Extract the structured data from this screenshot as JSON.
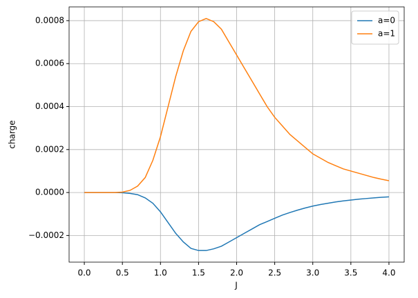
{
  "chart_data": {
    "type": "line",
    "xlabel": "J",
    "ylabel": "charge",
    "x": [
      0.0,
      0.1,
      0.2,
      0.3,
      0.4,
      0.5,
      0.6,
      0.7,
      0.8,
      0.9,
      1.0,
      1.1,
      1.2,
      1.3,
      1.4,
      1.5,
      1.6,
      1.7,
      1.8,
      1.9,
      2.0,
      2.1,
      2.2,
      2.3,
      2.4,
      2.5,
      2.6,
      2.7,
      2.8,
      2.9,
      3.0,
      3.1,
      3.2,
      3.3,
      3.4,
      3.5,
      3.6,
      3.7,
      3.8,
      3.9,
      4.0
    ],
    "series": [
      {
        "name": "a=0",
        "color": "#1f77b4",
        "values": [
          0,
          0,
          0,
          0,
          0,
          -1e-06,
          -4e-06,
          -1e-05,
          -2.5e-05,
          -5e-05,
          -9e-05,
          -0.00014,
          -0.00019,
          -0.00023,
          -0.00026,
          -0.00027,
          -0.00027,
          -0.000262,
          -0.00025,
          -0.00023,
          -0.00021,
          -0.00019,
          -0.00017,
          -0.00015,
          -0.000135,
          -0.00012,
          -0.000105,
          -9.3e-05,
          -8.2e-05,
          -7.2e-05,
          -6.3e-05,
          -5.6e-05,
          -5e-05,
          -4.4e-05,
          -3.9e-05,
          -3.5e-05,
          -3.1e-05,
          -2.8e-05,
          -2.5e-05,
          -2.2e-05,
          -2e-05
        ]
      },
      {
        "name": "a=1",
        "color": "#ff7f0e",
        "values": [
          0,
          0,
          0,
          0,
          0,
          2e-06,
          1e-05,
          3e-05,
          7e-05,
          0.00015,
          0.00026,
          0.0004,
          0.00054,
          0.00066,
          0.00075,
          0.000795,
          0.00081,
          0.000795,
          0.00076,
          0.0007,
          0.00064,
          0.00058,
          0.00052,
          0.00046,
          0.0004,
          0.00035,
          0.00031,
          0.00027,
          0.00024,
          0.00021,
          0.00018,
          0.00016,
          0.00014,
          0.000125,
          0.00011,
          0.0001,
          9e-05,
          8e-05,
          7e-05,
          6.2e-05,
          5.5e-05
        ]
      }
    ],
    "xlim": [
      -0.2,
      4.2
    ],
    "ylim": [
      -0.000324,
      0.000864
    ],
    "xticks": [
      {
        "value": 0,
        "label": "0.0"
      },
      {
        "value": 0.5,
        "label": "0.5"
      },
      {
        "value": 1,
        "label": "1.0"
      },
      {
        "value": 1.5,
        "label": "1.5"
      },
      {
        "value": 2,
        "label": "2.0"
      },
      {
        "value": 2.5,
        "label": "2.5"
      },
      {
        "value": 3,
        "label": "3.0"
      },
      {
        "value": 3.5,
        "label": "3.5"
      },
      {
        "value": 4,
        "label": "4.0"
      }
    ],
    "yticks": [
      {
        "value": -0.0002,
        "label": "−0.0002"
      },
      {
        "value": 0,
        "label": "0.0000"
      },
      {
        "value": 0.0002,
        "label": "0.0002"
      },
      {
        "value": 0.0004,
        "label": "0.0004"
      },
      {
        "value": 0.0006,
        "label": "0.0006"
      },
      {
        "value": 0.0008,
        "label": "0.0008"
      }
    ],
    "grid": true,
    "legend": "upper-right"
  }
}
